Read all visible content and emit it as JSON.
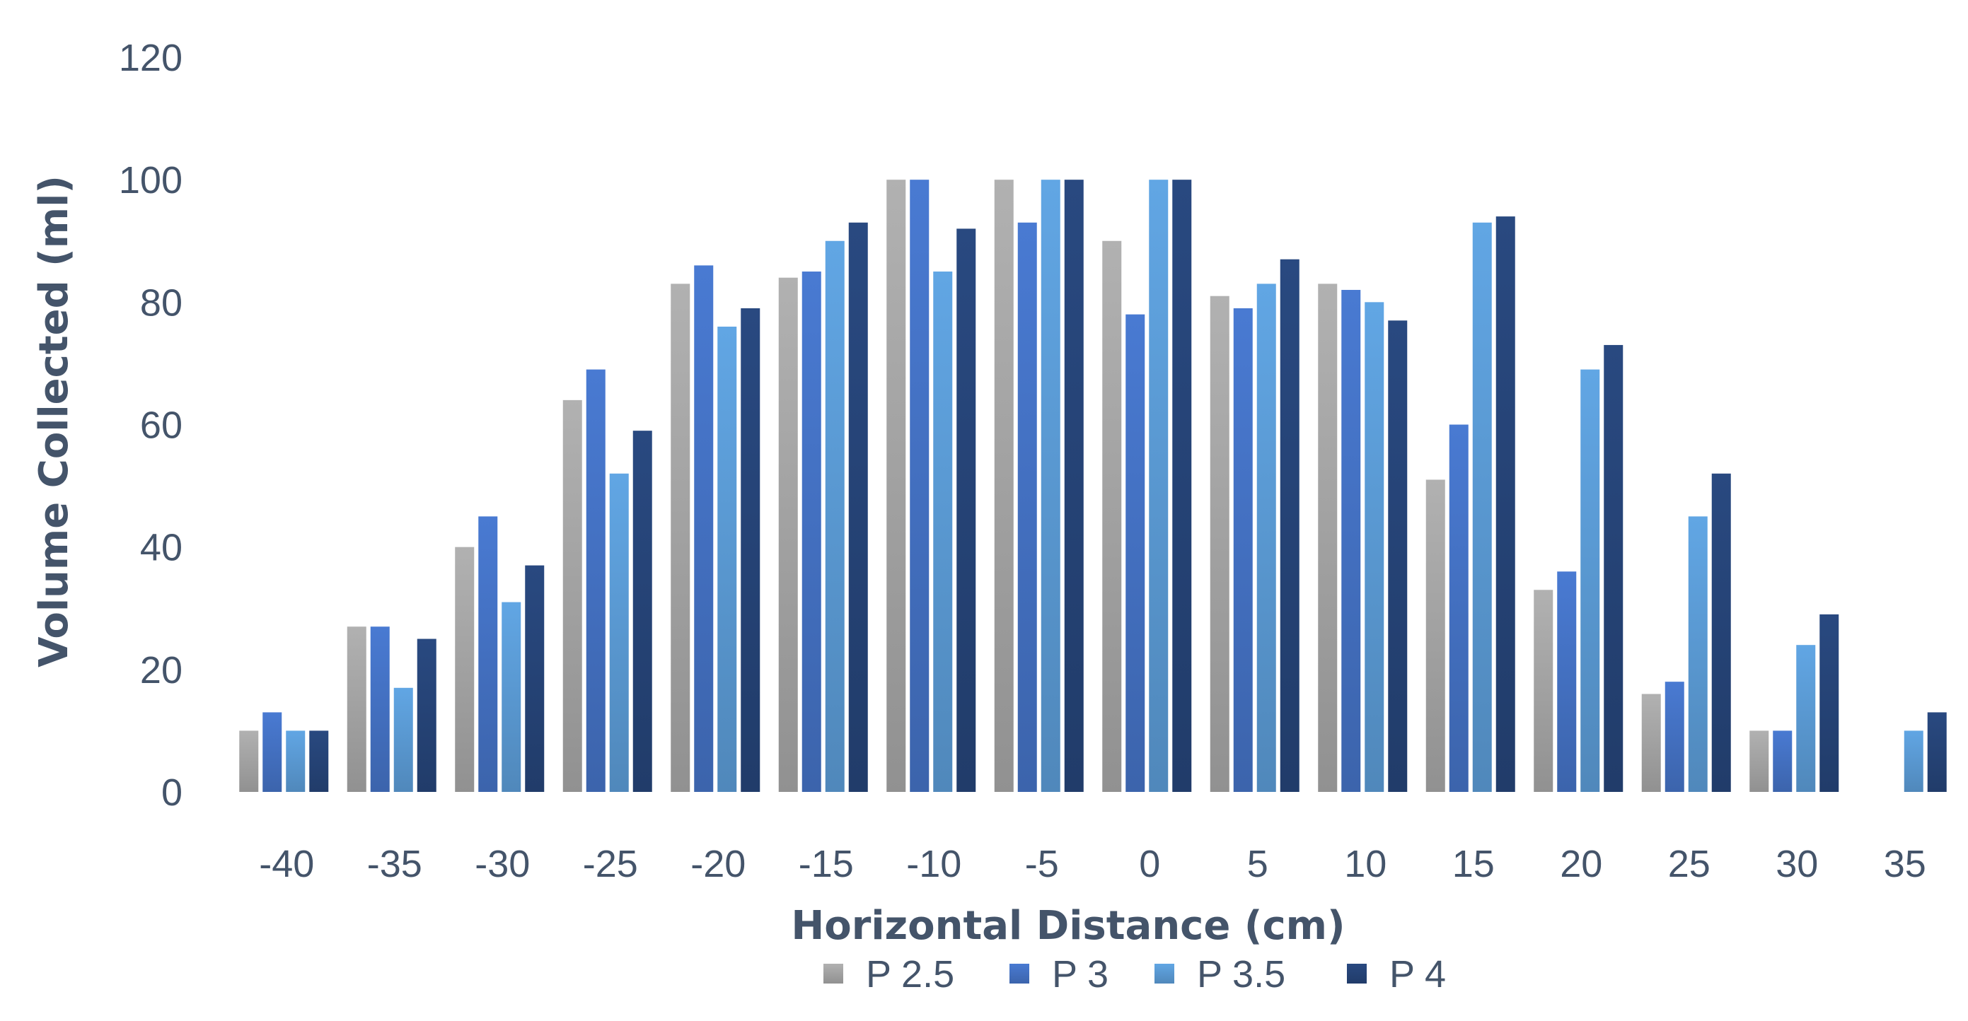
{
  "chart_data": {
    "type": "bar",
    "title": "",
    "xlabel": "Horizontal Distance (cm)",
    "ylabel": "Volume Collected (ml)",
    "ylim": [
      0,
      120
    ],
    "yticks": [
      "0",
      "20",
      "40",
      "60",
      "80",
      "100",
      "120"
    ],
    "categories": [
      "-40",
      "-35",
      "-30",
      "-25",
      "-20",
      "-15",
      "-10",
      "-5",
      "0",
      "5",
      "10",
      "15",
      "20",
      "25",
      "30",
      "35"
    ],
    "grid": false,
    "legend_position": "bottom",
    "series": [
      {
        "name": "P 2.5",
        "color": "#a5a5a5",
        "values": [
          10,
          27,
          40,
          64,
          83,
          84,
          100,
          100,
          90,
          81,
          83,
          51,
          33,
          16,
          10,
          0
        ]
      },
      {
        "name": "P 3",
        "color": "#4472c4",
        "values": [
          13,
          27,
          45,
          69,
          86,
          85,
          100,
          93,
          78,
          79,
          82,
          60,
          36,
          18,
          10,
          0
        ]
      },
      {
        "name": "P 3.5",
        "color": "#5b9bd5",
        "values": [
          10,
          17,
          31,
          52,
          76,
          90,
          85,
          100,
          100,
          83,
          80,
          93,
          69,
          45,
          24,
          10
        ]
      },
      {
        "name": "P 4",
        "color": "#264478",
        "values": [
          10,
          25,
          37,
          59,
          79,
          93,
          92,
          100,
          100,
          87,
          77,
          94,
          73,
          52,
          29,
          13
        ]
      }
    ]
  }
}
